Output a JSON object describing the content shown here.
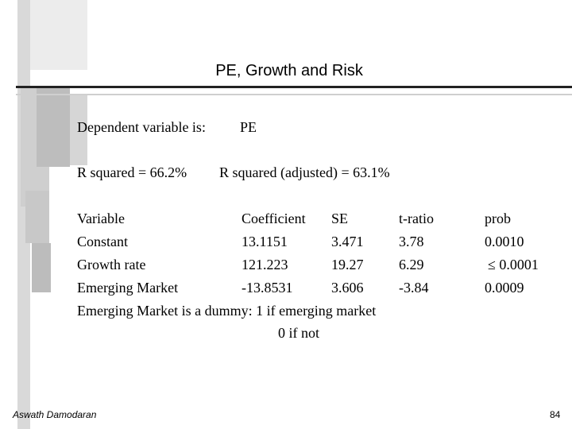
{
  "slide": {
    "title": "PE, Growth and Risk",
    "dependent_label": "Dependent variable is:",
    "dependent_value": "PE",
    "r_squared": "R squared = 66.2%",
    "r_squared_adjusted": "R squared (adjusted) = 63.1%",
    "table": {
      "headers": [
        "Variable",
        "Coefficient",
        "SE",
        "t-ratio",
        "prob"
      ],
      "rows": [
        [
          "Constant",
          "13.1151",
          "3.471",
          "3.78",
          "0.0010"
        ],
        [
          "Growth rate",
          "121.223",
          "19.27",
          "6.29",
          "≤ 0.0001"
        ],
        [
          "Emerging Market",
          "-13.8531",
          "3.606",
          "-3.84",
          "0.0009"
        ]
      ]
    },
    "note_line1": "Emerging Market is a dummy: 1 if emerging market",
    "note_line2": "0 if not",
    "footer_author": "Aswath Damodaran",
    "page_number": "84"
  },
  "colors": {
    "decoration_light": "#e6e6e6",
    "decoration_mid": "#bdbdbd",
    "rule": "#222222"
  }
}
